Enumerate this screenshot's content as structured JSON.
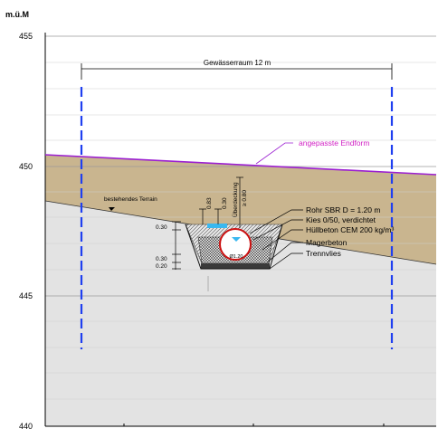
{
  "unit_label": "m.ü.M",
  "y_ticks": [
    "455",
    "450",
    "445",
    "440"
  ],
  "gewaesserraum": {
    "label": "Gewässerraum 12 m"
  },
  "endform": {
    "label": "angepasste Endform"
  },
  "terrain": {
    "label": "bestehendes Terrain"
  },
  "ueberdeckung": {
    "line1": "Überdeckung",
    "line2": "≥ 0.80"
  },
  "dims": {
    "d1": "0.83",
    "d2": "0.30",
    "d3": "0.30",
    "d4": "0.20",
    "d5": "0.30"
  },
  "pipe_tag": "Ø1.20",
  "materials": {
    "rohr": "Rohr SBR D = 1.20 m",
    "kies": "Kies 0/50, verdichtet",
    "huellbeton": "Hüllbeton CEM 200 kg/m³",
    "magerbeton": "Magerbeton",
    "trennvlies": "Trennvlies"
  },
  "colors": {
    "soil_brown": "#c9b58f",
    "ground_grey": "#e3e3e3",
    "dashed_blue": "#1f3ff0",
    "endform_line": "#9b1fd1",
    "endform_text": "#d11fc4",
    "pipe_red": "#cc1111",
    "water_blue": "#39b8f0"
  }
}
